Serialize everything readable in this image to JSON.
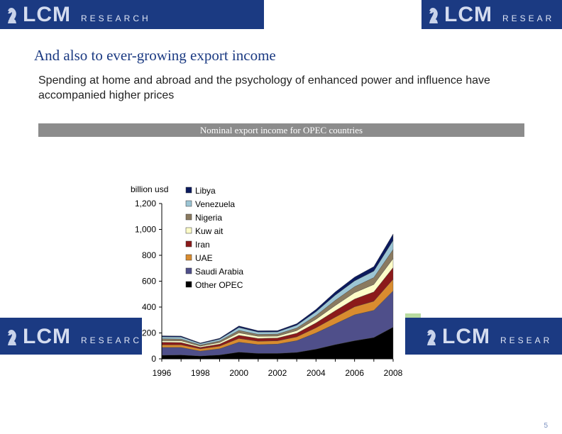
{
  "slide": {
    "title": "And also to ever-growing export income",
    "subtitle": "Spending at home and abroad and the psychology of enhanced power and influence have accompanied higher prices",
    "chart_caption": "Nominal export income for OPEC countries",
    "page_number": "5"
  },
  "branding": {
    "lcm": "LCM",
    "research": "RESEARCH",
    "research_cut": "RESEAR"
  },
  "chart_data": {
    "type": "area",
    "title": "",
    "ylabel": "billion usd",
    "xlabel": "",
    "ylim": [
      0,
      1200
    ],
    "yticks": [
      0,
      200,
      400,
      600,
      800,
      1000,
      1200
    ],
    "ytick_labels": [
      "0",
      "200",
      "400",
      "600",
      "800",
      "1,000",
      "1,200"
    ],
    "x": [
      1996,
      1997,
      1998,
      1999,
      2000,
      2001,
      2002,
      2003,
      2004,
      2005,
      2006,
      2007,
      2008
    ],
    "xtick_labels": [
      "1996",
      "1998",
      "2000",
      "2002",
      "2004",
      "2006",
      "2008"
    ],
    "legend_position": "top-left",
    "stack_order": "bottom-to-top",
    "series": [
      {
        "name": "Other OPEC",
        "color": "#000000",
        "values": [
          28,
          30,
          22,
          30,
          52,
          42,
          42,
          50,
          75,
          110,
          140,
          165,
          245
        ]
      },
      {
        "name": "Saudi Arabia",
        "color": "#4f4f8a",
        "values": [
          60,
          58,
          38,
          48,
          77,
          68,
          72,
          90,
          125,
          160,
          200,
          210,
          280
        ]
      },
      {
        "name": "UAE",
        "color": "#d98c2f",
        "values": [
          20,
          20,
          17,
          20,
          28,
          26,
          25,
          30,
          40,
          52,
          62,
          70,
          90
        ]
      },
      {
        "name": "Iran",
        "color": "#8b1a1a",
        "values": [
          20,
          18,
          12,
          16,
          25,
          22,
          22,
          28,
          38,
          50,
          60,
          72,
          90
        ]
      },
      {
        "name": "Kuw ait",
        "color": "#fdfcc8",
        "values": [
          12,
          13,
          9,
          12,
          19,
          16,
          15,
          20,
          28,
          40,
          50,
          58,
          70
        ]
      },
      {
        "name": "Nigeria",
        "color": "#8a7a60",
        "values": [
          15,
          14,
          9,
          12,
          19,
          15,
          15,
          20,
          28,
          40,
          45,
          53,
          70
        ]
      },
      {
        "name": "Venezuela",
        "color": "#9cc5d4",
        "values": [
          15,
          15,
          10,
          14,
          22,
          18,
          17,
          22,
          30,
          40,
          45,
          50,
          70
        ]
      },
      {
        "name": "Libya",
        "color": "#0b1a5e",
        "values": [
          8,
          8,
          6,
          7,
          12,
          10,
          10,
          12,
          18,
          25,
          30,
          35,
          50
        ]
      }
    ]
  }
}
